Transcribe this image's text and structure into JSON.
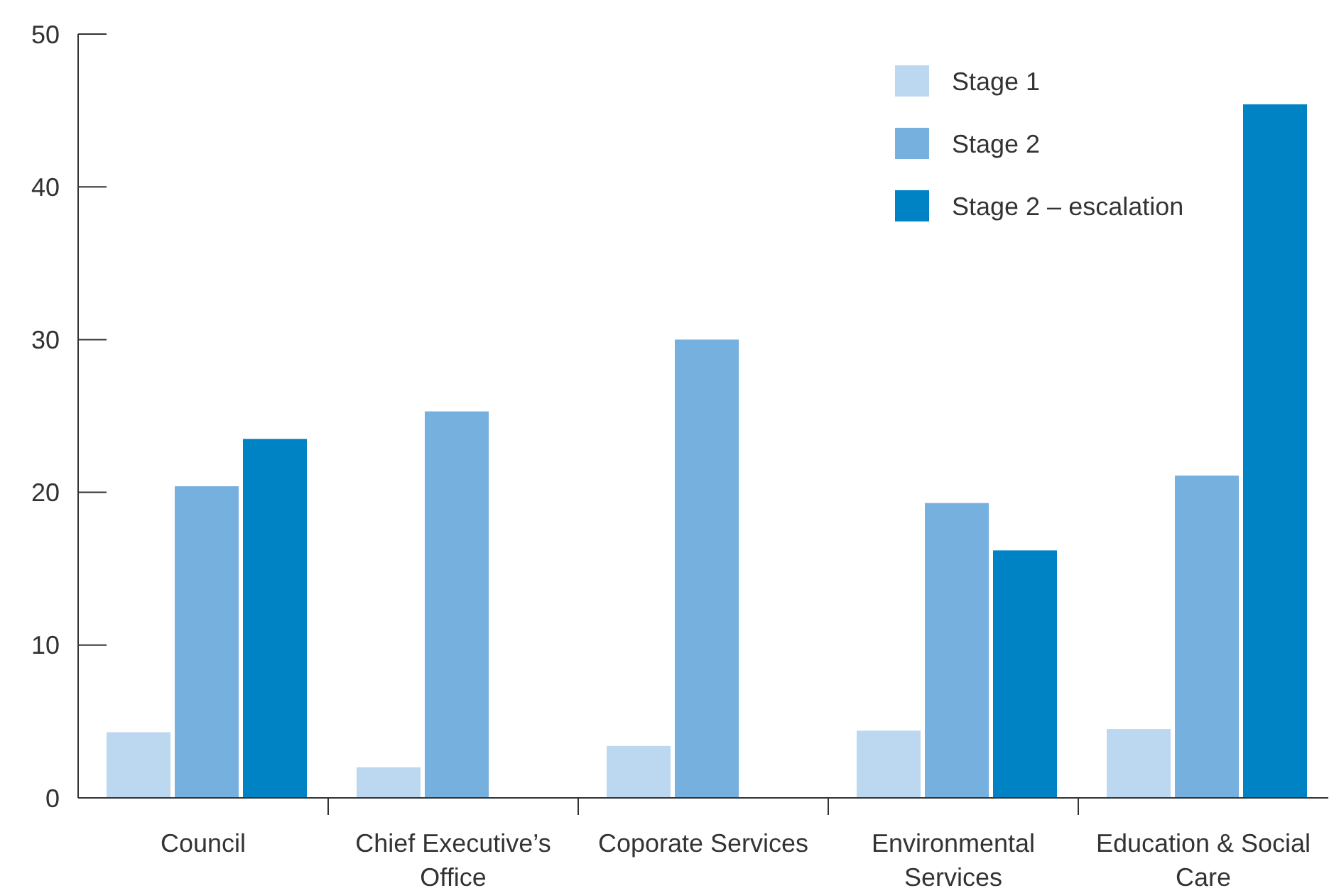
{
  "chart_data": {
    "type": "bar",
    "categories": [
      "Council",
      "Chief Executive’s Office",
      "Coporate Services",
      "Environmental Services",
      "Education & Social Care"
    ],
    "series": [
      {
        "name": "Stage 1",
        "color": "#bcd7f0",
        "values": [
          4.3,
          2.0,
          3.4,
          4.4,
          4.5
        ]
      },
      {
        "name": "Stage 2",
        "color": "#76b0de",
        "values": [
          20.4,
          25.3,
          30.0,
          19.3,
          21.1
        ]
      },
      {
        "name": "Stage 2 – escalation",
        "color": "#0083c4",
        "values": [
          23.5,
          null,
          null,
          16.2,
          45.4
        ]
      }
    ],
    "ylim": [
      0,
      50
    ],
    "yticks": [
      0,
      10,
      20,
      30,
      40,
      50
    ],
    "grid": false,
    "legend": "top right"
  }
}
